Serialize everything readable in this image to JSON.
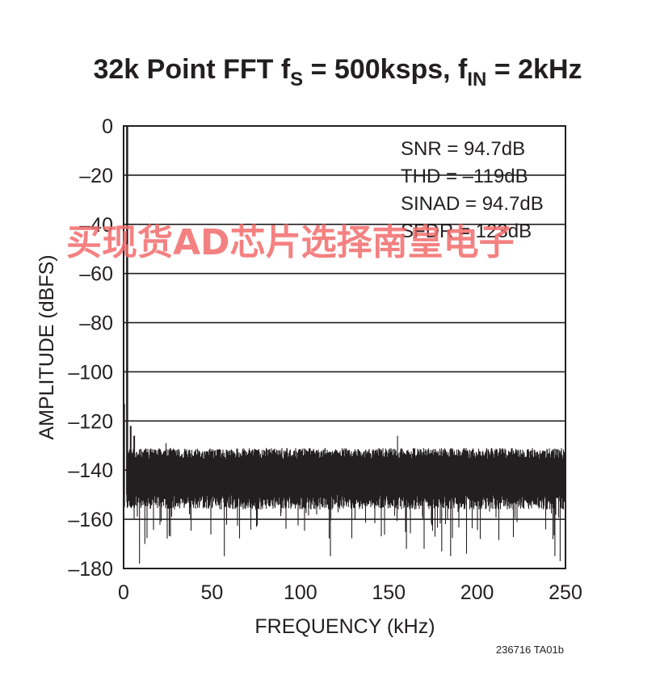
{
  "title": {
    "prefix": "32k Point FFT f",
    "sub1": "S",
    "middle": " = 500ksps, f",
    "sub2": "IN",
    "suffix": " = 2kHz"
  },
  "figure_code": "236716 TA01b",
  "watermark": "买现货AD芯片选择南皇电子",
  "colors": {
    "trace": "#231f20",
    "grid": "#231f20",
    "watermark": "#f26b6b"
  },
  "chart_data": {
    "type": "line",
    "title": "32k Point FFT fS = 500ksps, fIN = 2kHz",
    "xlabel": "FREQUENCY (kHz)",
    "ylabel": "AMPLITUDE (dBFS)",
    "xlim": [
      0,
      250
    ],
    "ylim": [
      -180,
      0
    ],
    "grid": true,
    "x_ticks": [
      0,
      50,
      100,
      150,
      200,
      250
    ],
    "x_tick_labels": [
      "0",
      "50",
      "100",
      "150",
      "200",
      "250"
    ],
    "y_ticks": [
      0,
      -20,
      -40,
      -60,
      -80,
      -100,
      -120,
      -140,
      -160,
      -180
    ],
    "y_tick_labels": [
      "0",
      "–20",
      "–40",
      "–60",
      "–80",
      "–100",
      "–120",
      "–140",
      "–160",
      "–180"
    ],
    "annotations": [
      "SNR = 94.7dB",
      "THD = –119dB",
      "SINAD = 94.7dB",
      "SFDR = 123dB"
    ],
    "fundamental": {
      "x": 2,
      "y": 0
    },
    "spurs": [
      {
        "x": 0.3,
        "y": -113
      },
      {
        "x": 4,
        "y": -122
      },
      {
        "x": 6,
        "y": -126
      }
    ],
    "noise_floor": {
      "top": -131,
      "dense_bottom": -150,
      "min": -178
    },
    "deep_dips": [
      {
        "x": 9,
        "y": -178
      },
      {
        "x": 12,
        "y": -170
      },
      {
        "x": 57,
        "y": -175
      },
      {
        "x": 117,
        "y": -175
      },
      {
        "x": 160,
        "y": -172
      },
      {
        "x": 170,
        "y": -172
      },
      {
        "x": 180,
        "y": -173
      },
      {
        "x": 185,
        "y": -175
      },
      {
        "x": 194,
        "y": -174
      },
      {
        "x": 244,
        "y": -175
      },
      {
        "x": 247,
        "y": -177
      }
    ],
    "noise_peaks": [
      {
        "x": 155,
        "y": -126
      },
      {
        "x": 24,
        "y": -129
      }
    ]
  }
}
